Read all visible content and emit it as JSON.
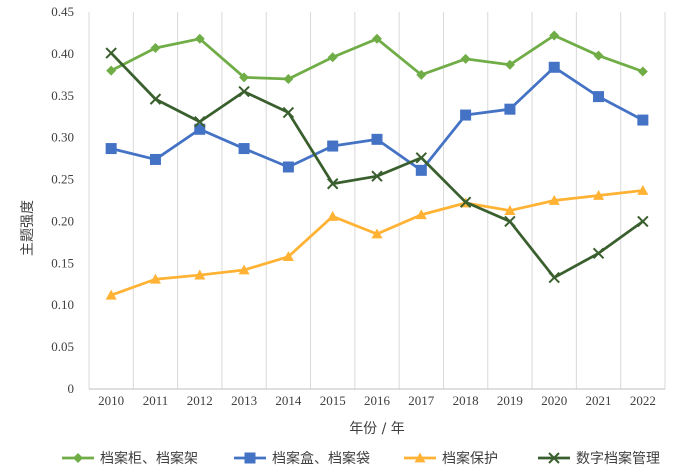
{
  "chart_data": {
    "type": "line",
    "xlabel": "年份 / 年",
    "ylabel": "主题强度",
    "ylim": [
      0,
      0.45
    ],
    "yticks": [
      "0",
      "0.05",
      "0.10",
      "0.15",
      "0.20",
      "0.25",
      "0.30",
      "0.35",
      "0.40",
      "0.45"
    ],
    "categories": [
      "2010",
      "2011",
      "2012",
      "2013",
      "2014",
      "2015",
      "2016",
      "2017",
      "2018",
      "2019",
      "2020",
      "2021",
      "2022"
    ],
    "grid": "vertical",
    "legend_position": "bottom",
    "series": [
      {
        "name": "档案柜、档案架",
        "color": "#70AD47",
        "marker": "diamond",
        "values": [
          0.38,
          0.407,
          0.418,
          0.372,
          0.37,
          0.396,
          0.418,
          0.375,
          0.394,
          0.387,
          0.422,
          0.398,
          0.379
        ]
      },
      {
        "name": "档案盒、档案袋",
        "color": "#4472C4",
        "marker": "square",
        "values": [
          0.287,
          0.274,
          0.31,
          0.287,
          0.265,
          0.29,
          0.298,
          0.261,
          0.327,
          0.334,
          0.384,
          0.349,
          0.321
        ]
      },
      {
        "name": "档案保护",
        "color": "#FFB233",
        "marker": "triangle",
        "values": [
          0.112,
          0.131,
          0.136,
          0.142,
          0.158,
          0.206,
          0.185,
          0.208,
          0.222,
          0.213,
          0.225,
          0.231,
          0.237
        ]
      },
      {
        "name": "数字档案管理",
        "color": "#3A5F2E",
        "marker": "x",
        "values": [
          0.401,
          0.346,
          0.319,
          0.355,
          0.33,
          0.245,
          0.254,
          0.276,
          0.223,
          0.2,
          0.133,
          0.162,
          0.2
        ]
      }
    ]
  }
}
